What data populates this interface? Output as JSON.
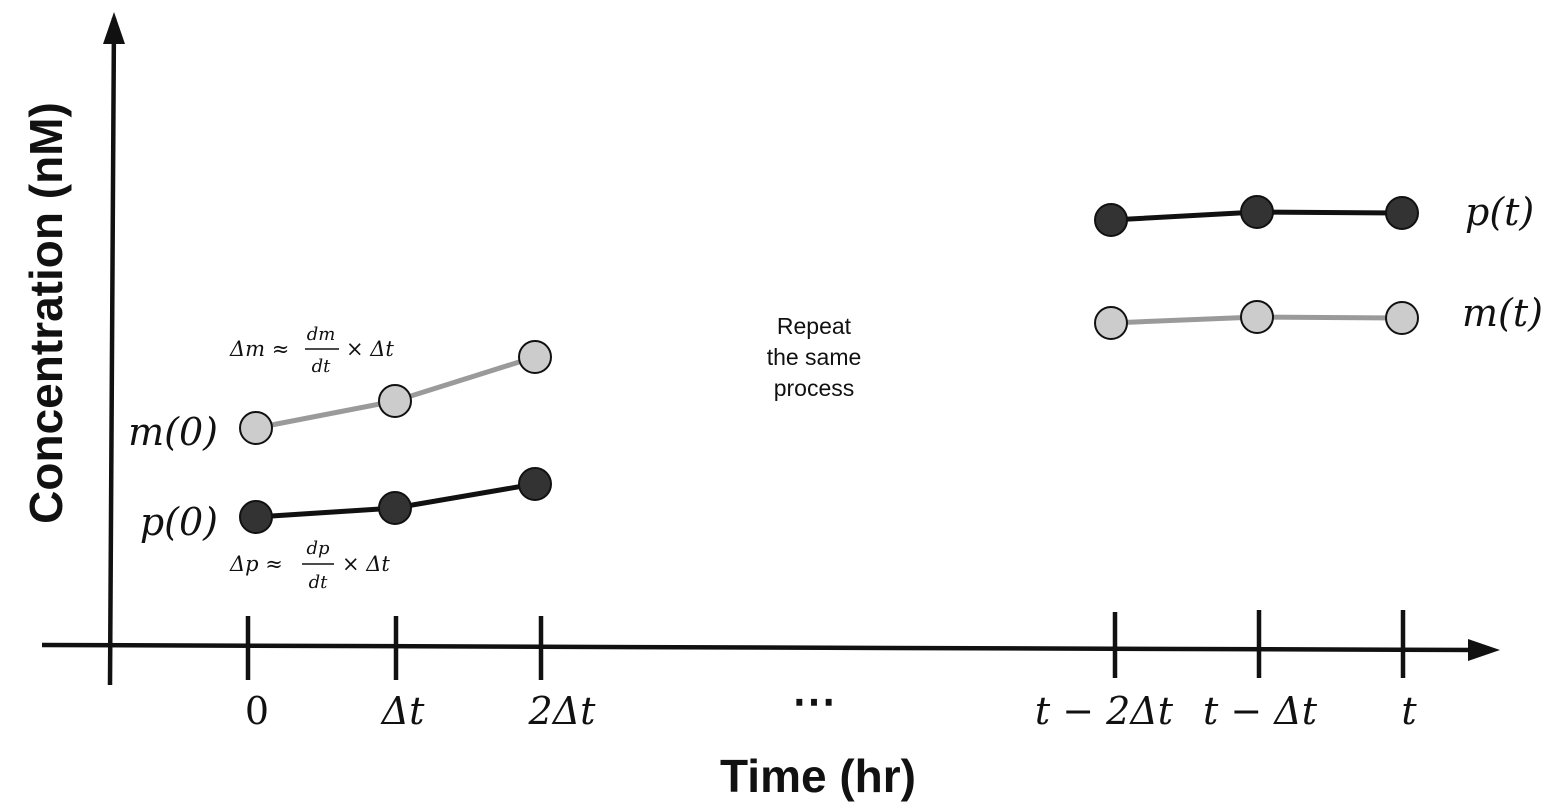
{
  "axes": {
    "y_title": "Concentration (nM)",
    "x_title": "Time (hr)"
  },
  "ticks": [
    "0",
    "Δt",
    "2Δt",
    "t − 2Δt",
    "t − Δt",
    "t"
  ],
  "gap_marker": "⋯",
  "labels": {
    "m0": "m(0)",
    "p0": "p(0)",
    "mt": "m(t)",
    "pt": "p(t)"
  },
  "formulas": {
    "dm": {
      "lhs": "Δm ≈",
      "num": "dm",
      "den": "dt",
      "rhs": "× Δt"
    },
    "dp": {
      "lhs": "Δp ≈",
      "num": "dp",
      "den": "dt",
      "rhs": "× Δt"
    }
  },
  "note": [
    "Repeat",
    "the same",
    "process"
  ],
  "series": {
    "m_color": "#cccccc",
    "m_line_color": "#9a9a9a",
    "p_color": "#333333",
    "p_line_color": "#111111"
  }
}
